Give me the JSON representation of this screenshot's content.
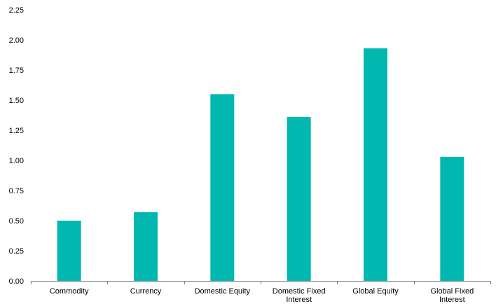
{
  "chart_data": {
    "type": "bar",
    "categories": [
      [
        "Commodity"
      ],
      [
        "Currency"
      ],
      [
        "Domestic Equity"
      ],
      [
        "Domestic Fixed",
        "Interest"
      ],
      [
        "Global Equity"
      ],
      [
        "Global Fixed",
        "Interest"
      ]
    ],
    "values": [
      0.5,
      0.57,
      1.55,
      1.36,
      1.93,
      1.03
    ],
    "yticks": [
      "0.00",
      "0.25",
      "0.50",
      "0.75",
      "1.00",
      "1.25",
      "1.50",
      "1.75",
      "2.00",
      "2.25"
    ],
    "ylim": [
      0,
      2.25
    ],
    "title": "",
    "xlabel": "",
    "ylabel": "",
    "grid": false,
    "legend": "none",
    "bar_color": "#00B8B0",
    "axis_color": "#808080"
  }
}
